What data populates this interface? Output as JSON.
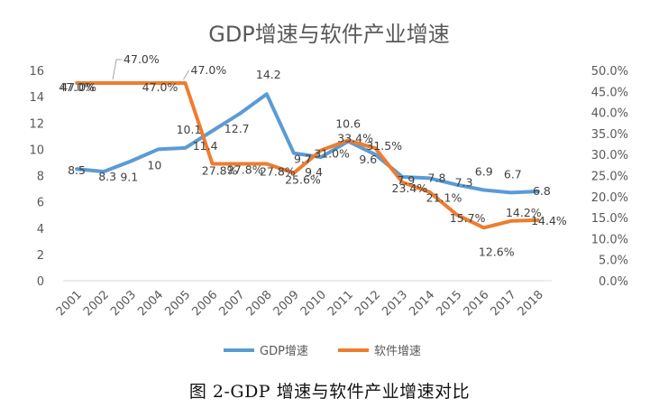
{
  "caption": "图 2-GDP 增速与软件产业增速对比",
  "chart_data": {
    "type": "line",
    "title": "GDP增速与软件产业增速",
    "categories": [
      "2001",
      "2002",
      "2003",
      "2004",
      "2005",
      "2006",
      "2007",
      "2008",
      "2009",
      "2010",
      "2011",
      "2012",
      "2013",
      "2014",
      "2015",
      "2016",
      "2017",
      "2018"
    ],
    "y_left": {
      "min": 0,
      "max": 16,
      "ticks": [
        "0",
        "2",
        "4",
        "6",
        "8",
        "10",
        "12",
        "14",
        "16"
      ]
    },
    "y_right": {
      "min": 0,
      "max": 50,
      "ticks": [
        "0.0%",
        "5.0%",
        "10.0%",
        "15.0%",
        "20.0%",
        "25.0%",
        "30.0%",
        "35.0%",
        "40.0%",
        "45.0%",
        "50.0%"
      ]
    },
    "grid": false,
    "legend_position": "bottom",
    "series": [
      {
        "name": "GDP增速",
        "axis": "left",
        "color": "#5B9BD5",
        "values": [
          8.5,
          8.3,
          9.1,
          10,
          10.1,
          11.4,
          12.7,
          14.2,
          9.7,
          9.4,
          10.6,
          9.6,
          7.9,
          7.8,
          7.3,
          6.9,
          6.7,
          6.8
        ],
        "labels": [
          "8.5",
          "8.3",
          "9.1",
          "10",
          "10.1",
          "11.4",
          "12.7",
          "14.2",
          "9.7",
          "9.4",
          "10.6",
          "9.6",
          "7.9",
          "7.8",
          "7.3",
          "6.9",
          "6.7",
          "6.8"
        ]
      },
      {
        "name": "软件增速",
        "axis": "right",
        "color": "#ED7D31",
        "values": [
          47.0,
          47.0,
          47.0,
          47.0,
          47.0,
          27.8,
          27.8,
          27.8,
          25.6,
          31.0,
          33.4,
          31.5,
          23.4,
          21.1,
          15.7,
          12.6,
          14.2,
          14.4
        ],
        "labels": [
          "47.0%",
          "47.0%",
          "",
          "",
          "47.0%",
          "27.8%",
          "27.8%",
          "27.8%",
          "25.6%",
          "31.0%",
          "33.4%",
          "31.5%",
          "23.4%",
          "21.1%",
          "15.7%",
          "12.6%",
          "14.2%",
          "14.4%"
        ],
        "extra_label": "47.0%"
      }
    ]
  }
}
